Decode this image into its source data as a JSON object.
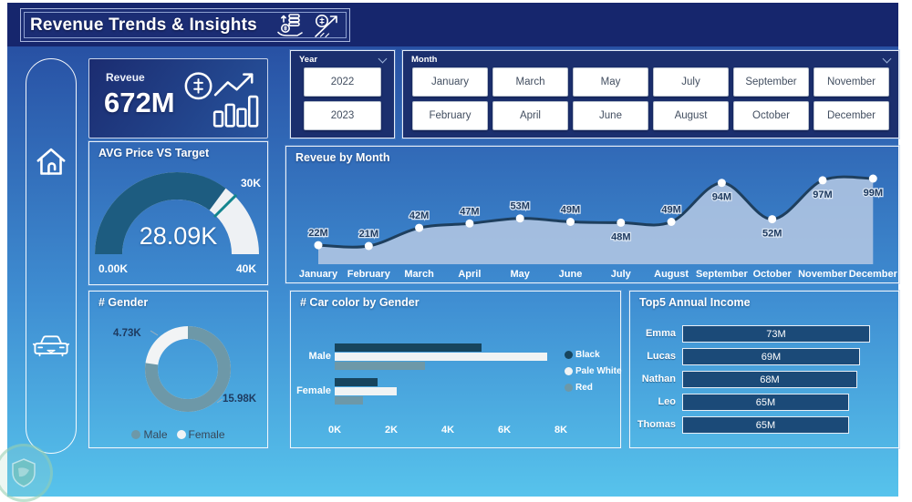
{
  "header": {
    "title": "Revenue Trends & Insights",
    "icons": [
      {
        "name": "hand-receiving-coins-icon"
      },
      {
        "name": "dollar-coin-growth-arrow-icon"
      }
    ]
  },
  "sidebar": {
    "items": [
      {
        "icon": "home-icon"
      },
      {
        "icon": "car-icon"
      }
    ]
  },
  "kpi": {
    "label": "Reveue",
    "value": "672M",
    "icon": "dollar-coin-bar-chart-trend-icon"
  },
  "slicers": {
    "year": {
      "label": "Year",
      "options": [
        "2022",
        "2023"
      ]
    },
    "month": {
      "label": "Month",
      "options": [
        "January",
        "February",
        "March",
        "April",
        "May",
        "June",
        "July",
        "August",
        "September",
        "October",
        "November",
        "December"
      ]
    }
  },
  "colors": {
    "header_navy": "#16266d",
    "panel_navy": "#1b2f6e",
    "gauge_fill": "#1d5c80",
    "gauge_track": "#eef1f4",
    "gauge_target": "#13858e",
    "line": "#1e3f5e",
    "area": "#b2c6e2",
    "male": "#6d98a8",
    "female": "#f2f4f5",
    "black_series": "#17455e",
    "pale_white_series": "#f0f3f4",
    "red_series": "#6d98a8",
    "income_bar": "#1b4a78"
  },
  "chart_data": [
    {
      "id": "avg_price_gauge",
      "type": "gauge",
      "title": "AVG Price VS Target",
      "value": 28.09,
      "value_label": "28.09K",
      "min": 0,
      "min_label": "0.00K",
      "max": 40,
      "max_label": "40K",
      "target": 30,
      "target_label": "30K"
    },
    {
      "id": "revenue_by_month",
      "type": "area",
      "title": "Reveue by Month",
      "categories": [
        "January",
        "February",
        "March",
        "April",
        "May",
        "June",
        "July",
        "August",
        "September",
        "October",
        "November",
        "December"
      ],
      "values": [
        22,
        21,
        42,
        47,
        53,
        49,
        48,
        49,
        94,
        52,
        97,
        99
      ],
      "labels": [
        "22M",
        "21M",
        "42M",
        "47M",
        "53M",
        "49M",
        "48M",
        "49M",
        "94M",
        "52M",
        "97M",
        "99M"
      ],
      "label_side": [
        "above",
        "above",
        "above",
        "above",
        "above",
        "above",
        "below",
        "above",
        "below",
        "below",
        "below",
        "below"
      ],
      "unit": "M",
      "ylim": [
        0,
        105
      ],
      "legend_position": "none",
      "grid": false
    },
    {
      "id": "gender_donut",
      "type": "pie",
      "title": "# Gender",
      "slices": [
        {
          "name": "Male",
          "value": 15.98,
          "label": "15.98K"
        },
        {
          "name": "Female",
          "value": 4.73,
          "label": "4.73K"
        }
      ],
      "legend_position": "bottom"
    },
    {
      "id": "car_color_by_gender",
      "type": "bar",
      "title": "# Car color by Gender",
      "orientation": "horizontal",
      "categories": [
        "Male",
        "Female"
      ],
      "series": [
        {
          "name": "Black",
          "values": [
            5.2,
            1.5
          ]
        },
        {
          "name": "Pale White",
          "values": [
            7.5,
            2.2
          ]
        },
        {
          "name": "Red",
          "values": [
            3.2,
            1.0
          ]
        }
      ],
      "x_ticks": [
        "0K",
        "2K",
        "4K",
        "6K",
        "8K"
      ],
      "xlim": [
        0,
        8
      ],
      "unit": "K",
      "legend_position": "right"
    },
    {
      "id": "top5_annual_income",
      "type": "bar",
      "orientation": "horizontal",
      "title": "Top5 Annual Income",
      "categories": [
        "Emma",
        "Lucas",
        "Nathan",
        "Leo",
        "Thomas"
      ],
      "values": [
        73,
        69,
        68,
        65,
        65
      ],
      "labels": [
        "73M",
        "69M",
        "68M",
        "65M",
        "65M"
      ],
      "unit": "M"
    }
  ]
}
